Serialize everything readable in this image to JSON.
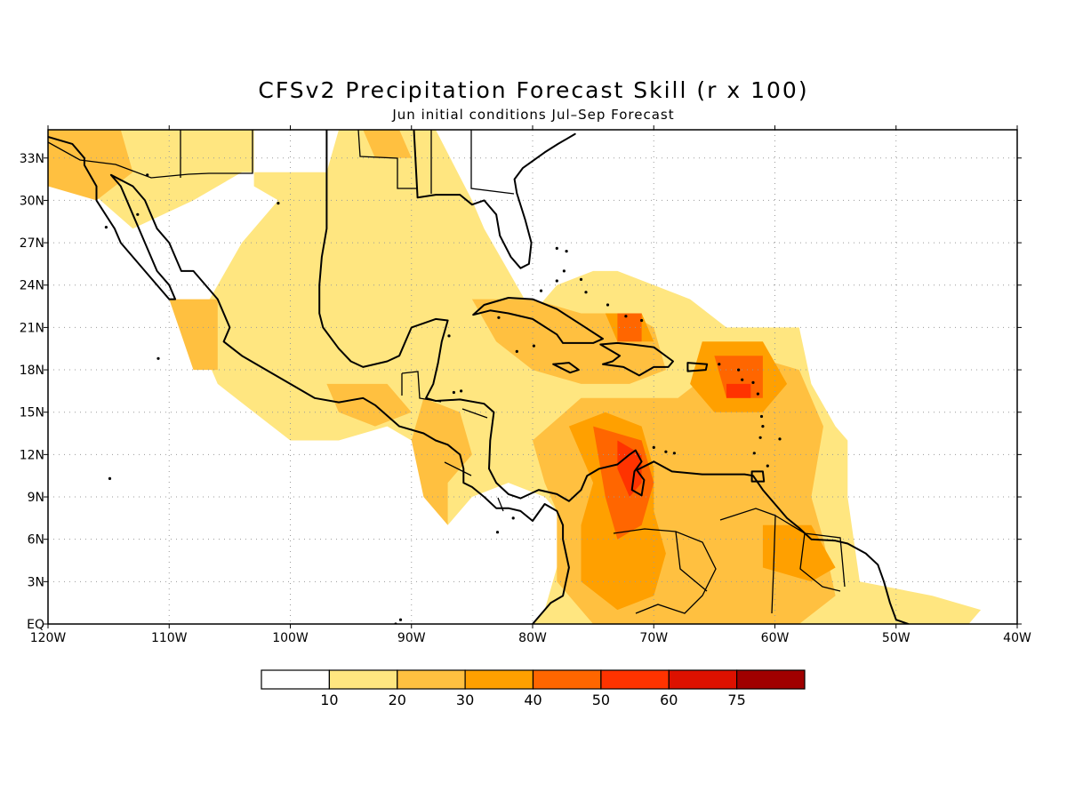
{
  "title": "CFSv2 Precipitation Forecast Skill (r x 100)",
  "subtitle": "Jun initial conditions   Jul–Sep Forecast",
  "map": {
    "lon_range": [
      -120,
      -40
    ],
    "lat_range": [
      0,
      35
    ],
    "lon_ticks": [
      {
        "v": -120,
        "label": "120W"
      },
      {
        "v": -110,
        "label": "110W"
      },
      {
        "v": -100,
        "label": "100W"
      },
      {
        "v": -90,
        "label": "90W"
      },
      {
        "v": -80,
        "label": "80W"
      },
      {
        "v": -70,
        "label": "70W"
      },
      {
        "v": -60,
        "label": "60W"
      },
      {
        "v": -50,
        "label": "50W"
      },
      {
        "v": -40,
        "label": "40W"
      }
    ],
    "lat_ticks": [
      {
        "v": 0,
        "label": "EQ"
      },
      {
        "v": 3,
        "label": "3N"
      },
      {
        "v": 6,
        "label": "6N"
      },
      {
        "v": 9,
        "label": "9N"
      },
      {
        "v": 12,
        "label": "12N"
      },
      {
        "v": 15,
        "label": "15N"
      },
      {
        "v": 18,
        "label": "18N"
      },
      {
        "v": 21,
        "label": "21N"
      },
      {
        "v": 24,
        "label": "24N"
      },
      {
        "v": 27,
        "label": "27N"
      },
      {
        "v": 30,
        "label": "30N"
      },
      {
        "v": 33,
        "label": "33N"
      }
    ],
    "grid": true
  },
  "colorbar": {
    "colors": [
      "#ffffff",
      "#ffe680",
      "#ffc040",
      "#ffa000",
      "#ff6600",
      "#ff3300",
      "#dd1100",
      "#a00000"
    ],
    "labels": [
      "10",
      "20",
      "30",
      "40",
      "50",
      "60",
      "75"
    ]
  },
  "skill_regions": [
    {
      "level": 1,
      "coords": [
        [
          -120,
          35
        ],
        [
          -103,
          35
        ],
        [
          -103,
          31
        ],
        [
          -101,
          30
        ],
        [
          -104,
          27
        ],
        [
          -106,
          24
        ],
        [
          -108,
          21
        ],
        [
          -106,
          17
        ],
        [
          -103,
          15
        ],
        [
          -100,
          13
        ],
        [
          -96,
          13
        ],
        [
          -92,
          14
        ],
        [
          -88,
          12
        ],
        [
          -87,
          7
        ],
        [
          -85,
          9
        ],
        [
          -82,
          10
        ],
        [
          -79,
          9
        ],
        [
          -77,
          7
        ],
        [
          -78,
          4
        ],
        [
          -79,
          1
        ],
        [
          -80,
          0
        ],
        [
          -44,
          0
        ],
        [
          -43,
          1
        ],
        [
          -47,
          2
        ],
        [
          -53,
          3
        ],
        [
          -54,
          9
        ],
        [
          -54,
          13
        ],
        [
          -55,
          14
        ],
        [
          -57,
          17
        ],
        [
          -58,
          21
        ],
        [
          -64,
          21
        ],
        [
          -67,
          23
        ],
        [
          -73,
          25
        ],
        [
          -75,
          25
        ],
        [
          -78,
          24
        ],
        [
          -80,
          22
        ],
        [
          -82,
          25
        ],
        [
          -84,
          28
        ],
        [
          -85,
          30
        ],
        [
          -88,
          35
        ],
        [
          -96,
          35
        ],
        [
          -97,
          32
        ],
        [
          -104,
          32
        ],
        [
          -108,
          30
        ],
        [
          -113,
          28
        ],
        [
          -117,
          31
        ],
        [
          -120,
          32
        ]
      ]
    },
    {
      "level": 1,
      "coords": [
        [
          -96,
          35
        ],
        [
          -91,
          35
        ],
        [
          -90,
          32
        ],
        [
          -93,
          30
        ],
        [
          -96,
          31
        ]
      ]
    },
    {
      "level": 1,
      "coords": [
        [
          -84,
          22
        ],
        [
          -80,
          23
        ],
        [
          -77,
          21
        ],
        [
          -82,
          21
        ]
      ]
    },
    {
      "level": 2,
      "coords": [
        [
          -120,
          35
        ],
        [
          -114,
          35
        ],
        [
          -113,
          32
        ],
        [
          -116,
          30
        ],
        [
          -120,
          31
        ]
      ]
    },
    {
      "level": 2,
      "coords": [
        [
          -94,
          35
        ],
        [
          -91,
          35
        ],
        [
          -90,
          33
        ],
        [
          -93,
          33
        ]
      ]
    },
    {
      "level": 2,
      "coords": [
        [
          -110,
          23
        ],
        [
          -106,
          23
        ],
        [
          -106,
          18
        ],
        [
          -108,
          18
        ]
      ]
    },
    {
      "level": 2,
      "coords": [
        [
          -97,
          17
        ],
        [
          -92,
          17
        ],
        [
          -90,
          15
        ],
        [
          -93,
          14
        ],
        [
          -96,
          15
        ]
      ]
    },
    {
      "level": 2,
      "coords": [
        [
          -89,
          16
        ],
        [
          -86,
          15
        ],
        [
          -85,
          12
        ],
        [
          -87,
          10
        ],
        [
          -87,
          7
        ],
        [
          -89,
          9
        ],
        [
          -90,
          13
        ]
      ]
    },
    {
      "level": 2,
      "coords": [
        [
          -85,
          23
        ],
        [
          -80,
          23
        ],
        [
          -76,
          22
        ],
        [
          -72,
          22
        ],
        [
          -70,
          21
        ],
        [
          -69,
          18
        ],
        [
          -72,
          17
        ],
        [
          -76,
          17
        ],
        [
          -80,
          18
        ],
        [
          -83,
          20
        ]
      ]
    },
    {
      "level": 2,
      "coords": [
        [
          -80,
          13
        ],
        [
          -76,
          16
        ],
        [
          -72,
          16
        ],
        [
          -68,
          16
        ],
        [
          -65,
          18
        ],
        [
          -62,
          19
        ],
        [
          -58,
          18
        ],
        [
          -56,
          14
        ],
        [
          -57,
          9
        ],
        [
          -56,
          6
        ],
        [
          -55,
          2
        ],
        [
          -58,
          0
        ],
        [
          -75,
          0
        ],
        [
          -78,
          3
        ],
        [
          -78,
          8
        ],
        [
          -79,
          10
        ]
      ]
    },
    {
      "level": 3,
      "coords": [
        [
          -74,
          22
        ],
        [
          -71,
          22
        ],
        [
          -70,
          20
        ],
        [
          -73,
          20
        ]
      ]
    },
    {
      "level": 3,
      "coords": [
        [
          -66,
          20
        ],
        [
          -61,
          20
        ],
        [
          -59,
          17
        ],
        [
          -61,
          15
        ],
        [
          -65,
          15
        ],
        [
          -67,
          17
        ]
      ]
    },
    {
      "level": 3,
      "coords": [
        [
          -77,
          14
        ],
        [
          -74,
          15
        ],
        [
          -71,
          14
        ],
        [
          -70,
          11
        ],
        [
          -70,
          8
        ],
        [
          -69,
          5
        ],
        [
          -70,
          2
        ],
        [
          -73,
          1
        ],
        [
          -76,
          3
        ],
        [
          -76,
          7
        ],
        [
          -75,
          10
        ]
      ]
    },
    {
      "level": 3,
      "coords": [
        [
          -61,
          7
        ],
        [
          -57,
          7
        ],
        [
          -55,
          4
        ],
        [
          -57,
          3
        ],
        [
          -61,
          4
        ]
      ]
    },
    {
      "level": 4,
      "coords": [
        [
          -73,
          22
        ],
        [
          -71,
          22
        ],
        [
          -71,
          20
        ],
        [
          -73,
          20
        ]
      ]
    },
    {
      "level": 4,
      "coords": [
        [
          -65,
          19
        ],
        [
          -61,
          19
        ],
        [
          -61,
          16
        ],
        [
          -64,
          16
        ]
      ]
    },
    {
      "level": 4,
      "coords": [
        [
          -75,
          14
        ],
        [
          -71,
          13
        ],
        [
          -70,
          10
        ],
        [
          -71,
          7
        ],
        [
          -73,
          6
        ],
        [
          -74,
          9
        ]
      ]
    },
    {
      "level": 5,
      "coords": [
        [
          -64,
          17
        ],
        [
          -62,
          17
        ],
        [
          -62,
          16
        ],
        [
          -64,
          16
        ]
      ]
    },
    {
      "level": 5,
      "coords": [
        [
          -73,
          13
        ],
        [
          -71,
          12
        ],
        [
          -71,
          10
        ],
        [
          -72,
          9
        ],
        [
          -73,
          11
        ]
      ]
    }
  ],
  "coastlines": [
    [
      [
        -120,
        34.5
      ],
      [
        -118,
        34
      ],
      [
        -117,
        33
      ],
      [
        -117,
        32.5
      ],
      [
        -116,
        31
      ],
      [
        -116,
        30
      ],
      [
        -114.5,
        28
      ],
      [
        -114,
        27
      ],
      [
        -112,
        25
      ],
      [
        -110,
        23
      ],
      [
        -109.5,
        23
      ],
      [
        -110,
        24
      ],
      [
        -111,
        25
      ],
      [
        -112,
        27
      ],
      [
        -113,
        29
      ],
      [
        -114,
        31
      ],
      [
        -114.8,
        31.8
      ],
      [
        -113,
        31
      ],
      [
        -112,
        30
      ],
      [
        -111,
        28
      ],
      [
        -110,
        27
      ],
      [
        -109,
        25
      ],
      [
        -108,
        25
      ],
      [
        -106,
        23
      ],
      [
        -105,
        21
      ],
      [
        -105.5,
        20
      ],
      [
        -104,
        19
      ],
      [
        -102,
        18
      ],
      [
        -100,
        17
      ],
      [
        -98,
        16
      ],
      [
        -96,
        15.7
      ],
      [
        -94,
        16
      ],
      [
        -93,
        15.5
      ],
      [
        -91,
        14
      ],
      [
        -89,
        13.5
      ],
      [
        -88,
        13
      ],
      [
        -87,
        12.7
      ],
      [
        -86,
        12
      ],
      [
        -85.7,
        11
      ],
      [
        -85.7,
        10
      ],
      [
        -85,
        9.7
      ],
      [
        -84,
        9
      ],
      [
        -83,
        8.2
      ],
      [
        -82,
        8.2
      ],
      [
        -81,
        8
      ],
      [
        -80,
        7.3
      ],
      [
        -79,
        8.5
      ],
      [
        -78,
        8
      ],
      [
        -77.5,
        7
      ],
      [
        -77.5,
        6
      ],
      [
        -77,
        4
      ],
      [
        -77.5,
        2
      ],
      [
        -78.5,
        1.5
      ],
      [
        -79,
        1
      ],
      [
        -80,
        0
      ]
    ],
    [
      [
        -97,
        35
      ],
      [
        -97,
        28
      ],
      [
        -97.4,
        26
      ],
      [
        -97.6,
        24
      ],
      [
        -97.6,
        22
      ],
      [
        -97.3,
        21
      ],
      [
        -96,
        19.5
      ],
      [
        -95,
        18.6
      ],
      [
        -94,
        18.2
      ],
      [
        -92,
        18.6
      ],
      [
        -91,
        19
      ],
      [
        -90.5,
        20
      ],
      [
        -90,
        21
      ],
      [
        -88,
        21.6
      ],
      [
        -87,
        21.5
      ],
      [
        -87.5,
        20
      ],
      [
        -87.8,
        18.5
      ],
      [
        -88.2,
        17
      ],
      [
        -88.8,
        16
      ],
      [
        -88,
        15.8
      ],
      [
        -86,
        15.9
      ],
      [
        -84,
        15.6
      ],
      [
        -83.2,
        15
      ],
      [
        -83.5,
        13
      ],
      [
        -83.6,
        11
      ],
      [
        -83,
        10
      ],
      [
        -82,
        9.2
      ],
      [
        -81,
        8.9
      ],
      [
        -79.5,
        9.5
      ],
      [
        -78,
        9.2
      ],
      [
        -77,
        8.7
      ],
      [
        -76,
        9.5
      ],
      [
        -75.5,
        10.5
      ],
      [
        -74.5,
        11
      ],
      [
        -73,
        11.3
      ],
      [
        -72,
        12
      ],
      [
        -71.5,
        12.3
      ],
      [
        -71,
        11.5
      ],
      [
        -71.6,
        10.8
      ],
      [
        -71.8,
        9.5
      ],
      [
        -71,
        9.1
      ],
      [
        -70.8,
        10.2
      ],
      [
        -71.4,
        10.9
      ],
      [
        -70,
        11.5
      ],
      [
        -68.5,
        10.8
      ],
      [
        -66,
        10.6
      ],
      [
        -64,
        10.6
      ],
      [
        -62.5,
        10.6
      ],
      [
        -61.8,
        10.5
      ],
      [
        -61,
        9.5
      ],
      [
        -60,
        8.5
      ],
      [
        -59,
        7.5
      ],
      [
        -58,
        6.8
      ],
      [
        -57,
        6
      ],
      [
        -55,
        5.9
      ],
      [
        -54,
        5.7
      ],
      [
        -52.5,
        5
      ],
      [
        -51.5,
        4.2
      ],
      [
        -51,
        3
      ],
      [
        -50.5,
        1.5
      ],
      [
        -50,
        0.3
      ],
      [
        -49,
        0
      ]
    ],
    [
      [
        -89.8,
        35
      ],
      [
        -89.5,
        30.2
      ],
      [
        -88,
        30.4
      ],
      [
        -86,
        30.4
      ],
      [
        -85,
        29.7
      ],
      [
        -84,
        30
      ],
      [
        -83,
        29
      ],
      [
        -82.7,
        27.5
      ],
      [
        -81.8,
        26
      ],
      [
        -81,
        25.2
      ],
      [
        -80.3,
        25.5
      ],
      [
        -80.1,
        27
      ],
      [
        -80.6,
        28.6
      ],
      [
        -81.3,
        30.5
      ],
      [
        -81.5,
        31.5
      ],
      [
        -80.8,
        32.3
      ],
      [
        -79,
        33.4
      ],
      [
        -77.9,
        34
      ],
      [
        -76.5,
        34.7
      ]
    ],
    [
      [
        -84.9,
        21.9
      ],
      [
        -84,
        22.6
      ],
      [
        -82,
        23.1
      ],
      [
        -80,
        23
      ],
      [
        -78,
        22.3
      ],
      [
        -76,
        21.2
      ],
      [
        -74.2,
        20.2
      ],
      [
        -75,
        19.9
      ],
      [
        -77.5,
        19.9
      ],
      [
        -78,
        20.5
      ],
      [
        -80,
        21.6
      ],
      [
        -82,
        22
      ],
      [
        -83.5,
        22.2
      ],
      [
        -84.9,
        21.9
      ]
    ],
    [
      [
        -74.4,
        19.8
      ],
      [
        -73,
        19.9
      ],
      [
        -71.8,
        19.8
      ],
      [
        -70,
        19.6
      ],
      [
        -68.4,
        18.6
      ],
      [
        -68.8,
        18.2
      ],
      [
        -70,
        18.2
      ],
      [
        -71.2,
        17.6
      ],
      [
        -72.5,
        18.2
      ],
      [
        -74.2,
        18.4
      ],
      [
        -73.4,
        18.6
      ],
      [
        -72.8,
        19
      ],
      [
        -74.4,
        19.8
      ]
    ],
    [
      [
        -78.3,
        18.4
      ],
      [
        -77,
        18.5
      ],
      [
        -76.2,
        18
      ],
      [
        -76.9,
        17.8
      ],
      [
        -78.3,
        18.4
      ]
    ],
    [
      [
        -67.2,
        18.5
      ],
      [
        -65.6,
        18.4
      ],
      [
        -65.7,
        18
      ],
      [
        -67.2,
        17.9
      ],
      [
        -67.2,
        18.5
      ]
    ],
    [
      [
        -61.9,
        10.8
      ],
      [
        -61,
        10.8
      ],
      [
        -60.9,
        10.1
      ],
      [
        -61.9,
        10.1
      ],
      [
        -61.9,
        10.8
      ]
    ]
  ],
  "islands": [
    [
      -61.8,
      17.1
    ],
    [
      -61.4,
      16.3
    ],
    [
      -61.1,
      14.7
    ],
    [
      -61,
      14
    ],
    [
      -61.2,
      13.2
    ],
    [
      -61.7,
      12.1
    ],
    [
      -62.7,
      17.3
    ],
    [
      -63,
      18
    ],
    [
      -64.6,
      18.4
    ],
    [
      -60.6,
      11.2
    ],
    [
      -59.6,
      13.1
    ],
    [
      -69,
      12.2
    ],
    [
      -70,
      12.5
    ],
    [
      -68.3,
      12.1
    ],
    [
      -77.4,
      25
    ],
    [
      -76,
      24.4
    ],
    [
      -75.6,
      23.5
    ],
    [
      -73.8,
      22.6
    ],
    [
      -72.3,
      21.8
    ],
    [
      -71,
      21.5
    ],
    [
      -78,
      26.6
    ],
    [
      -77.2,
      26.4
    ],
    [
      -79.3,
      23.6
    ],
    [
      -78,
      24.3
    ],
    [
      -81.3,
      19.3
    ],
    [
      -79.9,
      19.7
    ],
    [
      -82.8,
      21.7
    ],
    [
      -86.9,
      20.4
    ],
    [
      -85.9,
      16.5
    ],
    [
      -86.5,
      16.4
    ],
    [
      -90.9,
      0.3
    ],
    [
      -91.3,
      0
    ],
    [
      -112.6,
      29
    ],
    [
      -115.2,
      28.1
    ],
    [
      -110.9,
      18.8
    ],
    [
      -114.9,
      10.3
    ],
    [
      -111.8,
      31.8
    ],
    [
      -101,
      29.8
    ],
    [
      -82.9,
      6.5
    ],
    [
      -81.6,
      7.5
    ]
  ]
}
